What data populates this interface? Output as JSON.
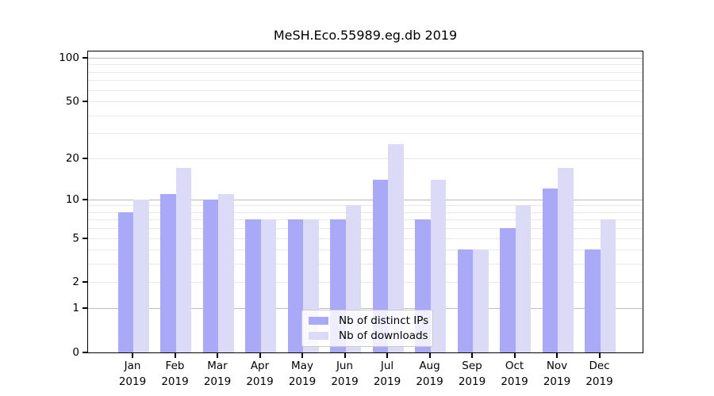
{
  "chart_data": {
    "type": "bar",
    "title": "MeSH.Eco.55989.eg.db 2019",
    "categories": [
      "Jan",
      "Feb",
      "Mar",
      "Apr",
      "May",
      "Jun",
      "Jul",
      "Aug",
      "Sep",
      "Oct",
      "Nov",
      "Dec"
    ],
    "year": "2019",
    "series": [
      {
        "name": "Nb of distinct IPs",
        "color": "#a9a9f7",
        "values": [
          8,
          11,
          10,
          7,
          7,
          7,
          14,
          7,
          4,
          6,
          12,
          4
        ]
      },
      {
        "name": "Nb of downloads",
        "color": "#dbdbf8",
        "values": [
          10,
          17,
          11,
          7,
          7,
          9,
          25,
          14,
          4,
          9,
          17,
          7
        ]
      }
    ],
    "yticks": [
      0,
      1,
      2,
      5,
      10,
      20,
      50,
      100
    ],
    "minor_gridline_values": [
      3,
      4,
      6,
      7,
      8,
      9,
      30,
      40,
      60,
      70,
      80,
      90
    ],
    "decade_gridline_values": [
      1,
      10,
      100
    ],
    "scale": "log1p",
    "ylim": [
      0,
      112
    ],
    "xlabel": "",
    "ylabel": "",
    "grid": "on",
    "legend_position": "lower center"
  },
  "colors": {
    "background": "#ffffff",
    "axis": "#000000",
    "major_grid": "#bcbcbc",
    "minor_grid": "#e8e8e8",
    "legend_border": "#cbcbcb"
  }
}
